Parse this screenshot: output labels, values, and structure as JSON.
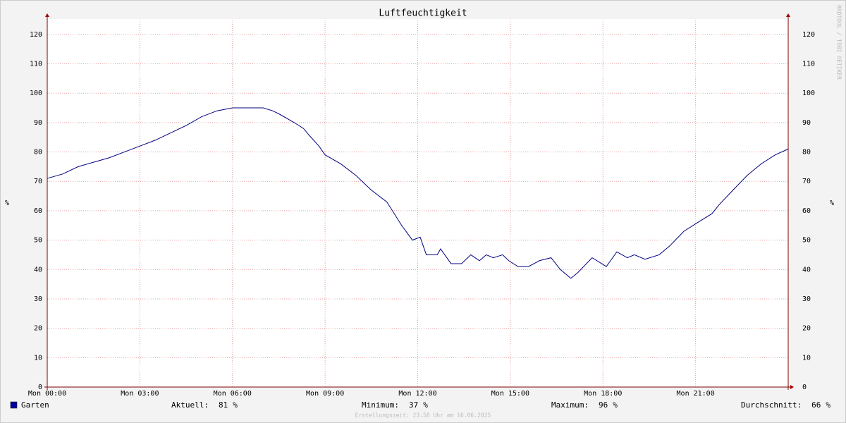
{
  "chart_data": {
    "type": "line",
    "title": "Luftfeuchtigkeit",
    "y_label": "%",
    "watermark": "RRDTOOL / TOBI OETIKER",
    "xlim": [
      0,
      24
    ],
    "xticks": [
      {
        "value": 0,
        "label": "Mon 00:00"
      },
      {
        "value": 3,
        "label": "Mon 03:00"
      },
      {
        "value": 6,
        "label": "Mon 06:00"
      },
      {
        "value": 9,
        "label": "Mon 09:00"
      },
      {
        "value": 12,
        "label": "Mon 12:00"
      },
      {
        "value": 15,
        "label": "Mon 15:00"
      },
      {
        "value": 18,
        "label": "Mon 18:00"
      },
      {
        "value": 21,
        "label": "Mon 21:00"
      }
    ],
    "ylim": [
      0,
      125
    ],
    "yticks": [
      0,
      10,
      20,
      30,
      40,
      50,
      60,
      70,
      80,
      90,
      100,
      110,
      120
    ],
    "grid": true,
    "x": [
      0,
      0.5,
      1,
      1.5,
      2,
      2.5,
      3,
      3.5,
      4,
      4.5,
      5,
      5.5,
      6,
      6.5,
      7,
      7.3,
      7.5,
      8,
      8.3,
      8.5,
      8.8,
      9,
      9.5,
      10,
      10.5,
      11,
      11.48,
      11.83,
      12.08,
      12.28,
      12.63,
      12.74,
      13.08,
      13.42,
      13.72,
      14.0,
      14.22,
      14.45,
      14.75,
      14.95,
      15.25,
      15.59,
      15.94,
      16.32,
      16.62,
      16.96,
      17.19,
      17.65,
      18.11,
      18.45,
      18.79,
      19.02,
      19.36,
      19.82,
      20.16,
      20.62,
      21.07,
      21.53,
      21.76,
      22.21,
      22.67,
      23.13,
      23.58,
      24
    ],
    "series": [
      {
        "name": "Garten",
        "color": "#000080",
        "values": [
          71,
          72.5,
          75,
          76.5,
          78,
          80,
          82,
          84,
          86.5,
          89,
          92,
          94,
          95,
          95,
          95,
          94,
          93,
          90,
          88,
          85.5,
          82,
          79,
          76,
          72,
          67,
          63,
          55,
          50,
          51,
          45,
          45,
          47,
          42,
          42,
          45,
          43,
          45,
          44,
          45,
          43,
          41,
          41,
          43,
          44,
          40,
          37,
          39,
          44,
          41,
          46,
          44,
          45,
          43.5,
          45,
          48,
          53,
          56,
          59,
          62,
          67,
          72,
          76,
          79,
          81
        ]
      }
    ],
    "stats": [
      {
        "label": "Aktuell:",
        "value": 81,
        "unit": "%"
      },
      {
        "label": "Minimum:",
        "value": 37,
        "unit": "%"
      },
      {
        "label": "Maximum:",
        "value": 96,
        "unit": "%"
      },
      {
        "label": "Durchschnitt:",
        "value": 66,
        "unit": "%"
      }
    ],
    "footer": "Erstellungszeit: 23:58 Uhr am 16.06.2025"
  }
}
